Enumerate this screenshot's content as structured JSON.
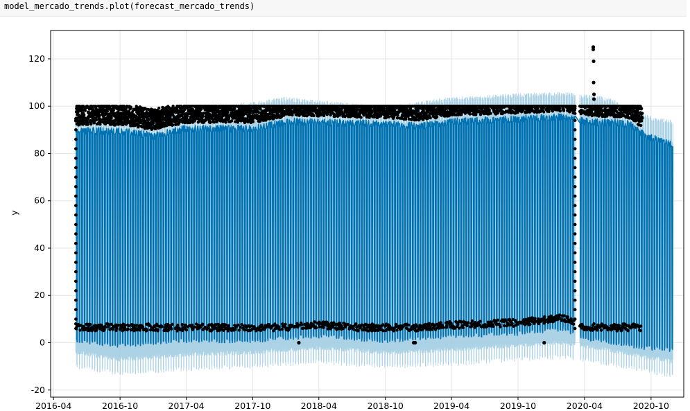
{
  "code_cell": {
    "object": "model_mercado_trends",
    "method": ".plot",
    "open_paren": "(",
    "argument": "forecast_mercado_trends",
    "close_paren": ")"
  },
  "chart_data": {
    "type": "line",
    "title": "",
    "xlabel": "",
    "ylabel": "y",
    "ylim": [
      -23,
      132
    ],
    "xlim": [
      "2016-03-24",
      "2020-12-30"
    ],
    "grid": true,
    "x_ticks": [
      "2016-04",
      "2016-10",
      "2017-04",
      "2017-10",
      "2018-04",
      "2018-10",
      "2019-04",
      "2019-10",
      "2020-04",
      "2020-10"
    ],
    "y_ticks": [
      -20,
      0,
      20,
      40,
      60,
      80,
      100,
      120
    ],
    "colors": {
      "forecast": "#0072B2",
      "uncertainty": "#9ecae1",
      "observed": "#000000",
      "grid": "#e6e6e6"
    },
    "series": [
      {
        "kind": "observed-points",
        "x_range": [
          "2016-06-01",
          "2020-09-07"
        ],
        "y_range": [
          0,
          100
        ],
        "daily_range": {
          "min": 5,
          "max": 100
        },
        "gap": [
          "2020-03-06",
          "2020-03-19"
        ]
      },
      {
        "kind": "forecast-yhat",
        "x_range": [
          "2016-06-01",
          "2020-11-30"
        ],
        "upper_envelope": [
          {
            "x": "2016-06-01",
            "y": 91
          },
          {
            "x": "2016-10-01",
            "y": 91
          },
          {
            "x": "2017-01-01",
            "y": 89
          },
          {
            "x": "2017-04-01",
            "y": 92
          },
          {
            "x": "2017-10-01",
            "y": 92
          },
          {
            "x": "2018-01-15",
            "y": 95
          },
          {
            "x": "2018-10-01",
            "y": 94
          },
          {
            "x": "2019-01-01",
            "y": 93
          },
          {
            "x": "2019-04-01",
            "y": 95
          },
          {
            "x": "2019-10-01",
            "y": 96
          },
          {
            "x": "2020-02-01",
            "y": 97
          },
          {
            "x": "2020-04-01",
            "y": 95
          },
          {
            "x": "2020-08-01",
            "y": 94
          },
          {
            "x": "2020-09-15",
            "y": 89
          },
          {
            "x": "2020-11-30",
            "y": 85
          }
        ],
        "lower_envelope": [
          {
            "x": "2016-06-01",
            "y": 0
          },
          {
            "x": "2016-10-01",
            "y": -2
          },
          {
            "x": "2017-04-01",
            "y": 0
          },
          {
            "x": "2017-10-01",
            "y": 0
          },
          {
            "x": "2018-04-01",
            "y": 2
          },
          {
            "x": "2018-10-01",
            "y": 0
          },
          {
            "x": "2019-04-01",
            "y": 2
          },
          {
            "x": "2019-10-01",
            "y": 3
          },
          {
            "x": "2020-02-01",
            "y": 5
          },
          {
            "x": "2020-04-01",
            "y": 1
          },
          {
            "x": "2020-09-15",
            "y": -3
          },
          {
            "x": "2020-11-30",
            "y": -4
          }
        ]
      },
      {
        "kind": "uncertainty-interval",
        "upper_envelope": [
          {
            "x": "2016-06-01",
            "y": 96
          },
          {
            "x": "2017-04-01",
            "y": 98
          },
          {
            "x": "2018-01-01",
            "y": 104
          },
          {
            "x": "2018-10-01",
            "y": 100
          },
          {
            "x": "2019-04-01",
            "y": 104
          },
          {
            "x": "2019-12-01",
            "y": 106
          },
          {
            "x": "2020-02-15",
            "y": 106
          },
          {
            "x": "2020-06-01",
            "y": 104
          },
          {
            "x": "2020-10-01",
            "y": 96
          },
          {
            "x": "2020-11-30",
            "y": 94
          }
        ],
        "lower_envelope": [
          {
            "x": "2016-06-01",
            "y": -11
          },
          {
            "x": "2016-10-01",
            "y": -14
          },
          {
            "x": "2017-04-01",
            "y": -12
          },
          {
            "x": "2017-10-01",
            "y": -11
          },
          {
            "x": "2018-04-01",
            "y": -9
          },
          {
            "x": "2018-10-01",
            "y": -11
          },
          {
            "x": "2019-04-01",
            "y": -10
          },
          {
            "x": "2019-10-01",
            "y": -8
          },
          {
            "x": "2020-02-01",
            "y": -7
          },
          {
            "x": "2020-05-01",
            "y": -9
          },
          {
            "x": "2020-11-30",
            "y": -15
          }
        ]
      }
    ],
    "outliers": [
      {
        "x": "2018-02-05",
        "y": 0
      },
      {
        "x": "2018-12-18",
        "y": 0
      },
      {
        "x": "2018-12-22",
        "y": 0
      },
      {
        "x": "2019-12-12",
        "y": 0
      },
      {
        "x": "2020-04-25",
        "y": 125
      },
      {
        "x": "2020-04-25",
        "y": 124
      },
      {
        "x": "2020-04-26",
        "y": 119
      },
      {
        "x": "2020-04-26",
        "y": 110
      },
      {
        "x": "2020-04-27",
        "y": 105
      },
      {
        "x": "2020-04-27",
        "y": 103
      }
    ]
  }
}
